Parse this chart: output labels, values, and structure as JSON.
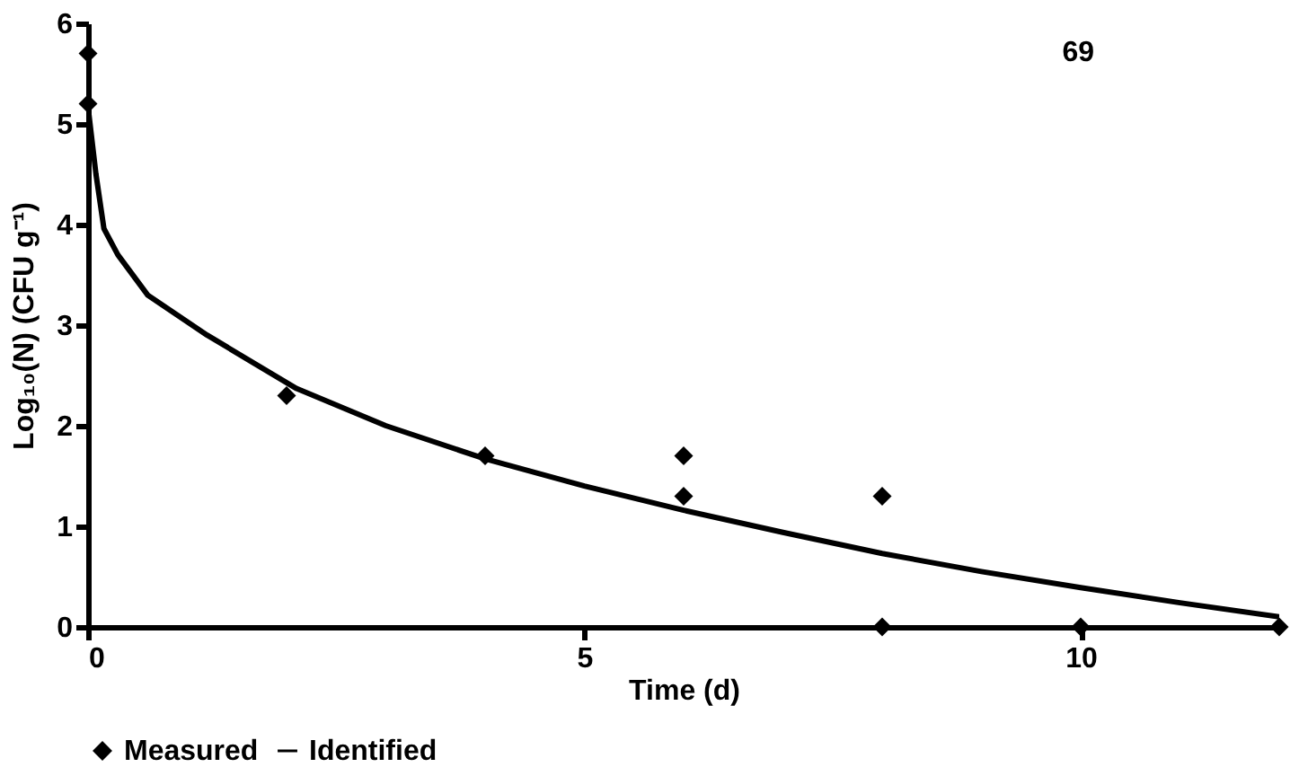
{
  "chart_data": {
    "type": "scatter",
    "xlabel": "Time (d)",
    "ylabel": "Log₁₀(N) (CFU g⁻¹)",
    "annotations": [
      "69"
    ],
    "xlim": [
      0,
      12
    ],
    "xticks": [
      0,
      5,
      10
    ],
    "ylim": [
      0,
      6
    ],
    "yticks": [
      0,
      1,
      2,
      3,
      4,
      5,
      6
    ],
    "grid": false,
    "legend": "bottom",
    "series": [
      {
        "name": "Measured",
        "marker": "diamond",
        "color": "#000000",
        "x": [
          0,
          0,
          2,
          4,
          6,
          6,
          8,
          8,
          10,
          12
        ],
        "values": [
          5.7,
          5.2,
          2.3,
          1.7,
          1.7,
          1.3,
          1.3,
          0,
          0,
          0
        ]
      },
      {
        "name": "Identified",
        "type": "line",
        "line_style": "solid",
        "color": "#000000",
        "x": [
          0,
          0.08,
          0.16,
          0.3,
          0.6,
          1.2,
          2.1,
          3,
          4,
          5,
          6,
          7,
          8,
          9,
          10,
          11,
          12
        ],
        "values": [
          5.17,
          4.5,
          3.96,
          3.7,
          3.3,
          2.9,
          2.37,
          2.0,
          1.67,
          1.4,
          1.16,
          0.94,
          0.73,
          0.55,
          0.39,
          0.24,
          0.1
        ]
      }
    ]
  }
}
